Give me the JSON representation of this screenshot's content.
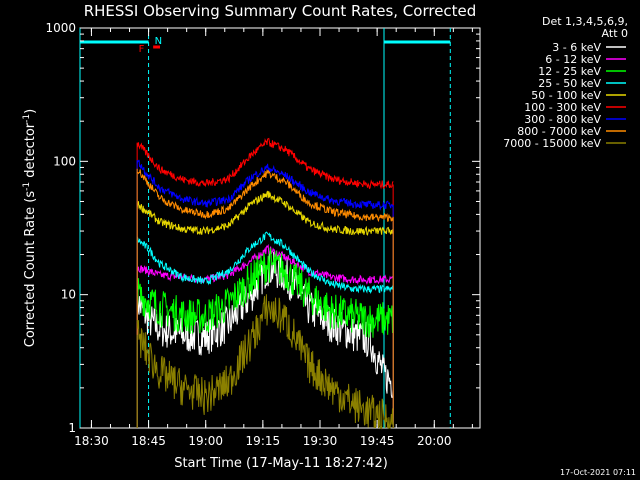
{
  "chart_data": {
    "type": "line",
    "title": "RHESSI Observing Summary Count Rates, Corrected",
    "xlabel": "Start Time (17-May-11 18:27:42)",
    "ylabel_main": "Corrected Count Rate (s",
    "ylabel_sup1": "-1",
    "ylabel_mid": " detector",
    "ylabel_sup2": "-1",
    "ylabel_end": ")",
    "y_scale": "log",
    "ylim": [
      1,
      1000
    ],
    "xlim_minutes": [
      18.45,
      20.2
    ],
    "x_ticks": [
      {
        "t": 18.5,
        "label": "18:30"
      },
      {
        "t": 18.75,
        "label": "18:45"
      },
      {
        "t": 19.0,
        "label": "19:00"
      },
      {
        "t": 19.25,
        "label": "19:15"
      },
      {
        "t": 19.5,
        "label": "19:30"
      },
      {
        "t": 19.75,
        "label": "19:45"
      },
      {
        "t": 20.0,
        "label": "20:00"
      }
    ],
    "y_ticks": [
      {
        "v": 1,
        "label": "1"
      },
      {
        "v": 10,
        "label": "10"
      },
      {
        "v": 100,
        "label": "100"
      },
      {
        "v": 1000,
        "label": "1000"
      }
    ],
    "legend_header": [
      "Det 1,3,4,5,6,9,",
      "Att 0"
    ],
    "legend_position": "right",
    "series": [
      {
        "name": "3 - 6 keV",
        "color": "#ffffff",
        "x": [
          18.7,
          18.75,
          18.8,
          18.9,
          19.0,
          19.1,
          19.2,
          19.27,
          19.35,
          19.45,
          19.55,
          19.65,
          19.72,
          19.78,
          19.82
        ],
        "values": [
          9,
          6.5,
          5.5,
          5,
          4.8,
          6,
          10,
          16,
          14,
          8,
          6,
          5,
          4.5,
          2.5,
          2.2
        ]
      },
      {
        "name": "6 - 12 keV",
        "color": "#ff00ff",
        "x": [
          18.7,
          18.75,
          18.8,
          18.9,
          19.0,
          19.1,
          19.2,
          19.27,
          19.35,
          19.45,
          19.55,
          19.65,
          19.72,
          19.78,
          19.82
        ],
        "values": [
          16,
          15,
          14,
          13.5,
          13,
          14,
          18,
          22,
          19,
          15,
          13.5,
          13,
          13,
          13,
          13
        ]
      },
      {
        "name": "12 - 25 keV",
        "color": "#00ff00",
        "x": [
          18.7,
          18.75,
          18.8,
          18.9,
          19.0,
          19.1,
          19.2,
          19.27,
          19.35,
          19.45,
          19.55,
          19.65,
          19.72,
          19.78,
          19.82
        ],
        "values": [
          10,
          9,
          8,
          7,
          6.8,
          8.5,
          13,
          17,
          15,
          10,
          7.5,
          6.8,
          6.5,
          6.5,
          6.5
        ]
      },
      {
        "name": "25 - 50 keV",
        "color": "#00ffff",
        "x": [
          18.7,
          18.75,
          18.8,
          18.9,
          19.0,
          19.1,
          19.2,
          19.27,
          19.35,
          19.45,
          19.55,
          19.65,
          19.72,
          19.78,
          19.82
        ],
        "values": [
          26,
          22,
          17,
          13.5,
          12.5,
          15,
          23,
          28,
          23,
          15,
          12,
          11,
          11,
          11,
          11
        ]
      },
      {
        "name": "50 - 100 keV",
        "color": "#e8d800",
        "x": [
          18.7,
          18.75,
          18.8,
          18.9,
          19.0,
          19.1,
          19.2,
          19.27,
          19.35,
          19.45,
          19.55,
          19.65,
          19.72,
          19.78,
          19.82
        ],
        "values": [
          48,
          41,
          35,
          31,
          30,
          33,
          48,
          57,
          48,
          35,
          31,
          30,
          30,
          30,
          30
        ]
      },
      {
        "name": "100 - 300 keV",
        "color": "#ff0000",
        "x": [
          18.7,
          18.75,
          18.8,
          18.9,
          19.0,
          19.1,
          19.2,
          19.27,
          19.35,
          19.45,
          19.55,
          19.65,
          19.72,
          19.78,
          19.82
        ],
        "values": [
          138,
          110,
          87,
          73,
          68,
          74,
          112,
          140,
          122,
          88,
          74,
          69,
          67,
          67,
          67
        ]
      },
      {
        "name": "300 - 800 keV",
        "color": "#0000ff",
        "x": [
          18.7,
          18.75,
          18.8,
          18.9,
          19.0,
          19.1,
          19.2,
          19.27,
          19.35,
          19.45,
          19.55,
          19.65,
          19.72,
          19.78,
          19.82
        ],
        "values": [
          102,
          78,
          63,
          52,
          48,
          52,
          76,
          90,
          78,
          59,
          51,
          48,
          47,
          47,
          47
        ]
      },
      {
        "name": "800 - 7000 keV",
        "color": "#ff8c00",
        "x": [
          18.7,
          18.75,
          18.8,
          18.9,
          19.0,
          19.1,
          19.2,
          19.27,
          19.35,
          19.45,
          19.55,
          19.65,
          19.72,
          19.78,
          19.82
        ],
        "values": [
          88,
          68,
          53,
          43,
          40,
          44,
          66,
          82,
          70,
          49,
          42,
          39,
          38,
          38,
          38
        ]
      },
      {
        "name": "7000 - 15000 keV",
        "color": "#8b8000",
        "x": [
          18.7,
          18.75,
          18.8,
          18.9,
          19.0,
          19.1,
          19.2,
          19.27,
          19.35,
          19.45,
          19.55,
          19.65,
          19.72,
          19.78,
          19.82
        ],
        "values": [
          5,
          3.5,
          2.6,
          2,
          1.7,
          2.2,
          4.5,
          8,
          6.5,
          3,
          2,
          1.5,
          1.3,
          1.2,
          1.1
        ]
      }
    ],
    "annotations": {
      "flag_labels": [
        {
          "label": "F",
          "color": "#ff0000"
        },
        {
          "label": "N",
          "color": "#00ffff"
        }
      ],
      "night_intervals": [
        [
          18.45,
          18.75
        ],
        [
          19.78,
          20.07
        ]
      ],
      "saa_or_flag_red": [
        [
          18.77,
          18.8
        ]
      ]
    },
    "footer_timestamp": "17-Oct-2021 07:11"
  }
}
